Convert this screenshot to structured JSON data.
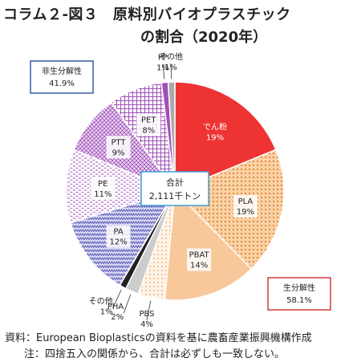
{
  "header": {
    "title_line1": "コラム２-図３　原料別バイオプラスチック",
    "title_line2": "の割合（2020年）"
  },
  "chart_data": {
    "type": "pie",
    "start": "top",
    "slices": [
      {
        "label": "でん粉",
        "pct_text": "19%",
        "value": 19,
        "color": "#ee3333",
        "pattern": "solid"
      },
      {
        "label": "PLA",
        "pct_text": "19%",
        "value": 19,
        "color": "#f4a460",
        "pattern": "dots"
      },
      {
        "label": "PBAT",
        "pct_text": "14%",
        "value": 14,
        "color": "#f8c89a",
        "pattern": "solid"
      },
      {
        "label": "PBS",
        "pct_text": "4%",
        "value": 4,
        "color": "#f8d9b8",
        "pattern": "dots"
      },
      {
        "label": "PHA",
        "pct_text": "2%",
        "value": 2,
        "color": "#cccccc",
        "pattern": "solid"
      },
      {
        "label": "その他",
        "pct_text": "1%",
        "value": 1,
        "color": "#222222",
        "pattern": "solid"
      },
      {
        "label": "PA",
        "pct_text": "12%",
        "value": 12,
        "color": "#7070c8",
        "pattern": "zigzag"
      },
      {
        "label": "PE",
        "pct_text": "11%",
        "value": 11,
        "color": "#b070c8",
        "pattern": "dash"
      },
      {
        "label": "PTT",
        "pct_text": "9%",
        "value": 9,
        "color": "#b070c8",
        "pattern": "cross"
      },
      {
        "label": "PET",
        "pct_text": "8%",
        "value": 8,
        "color": "#a050b8",
        "pattern": "grid"
      },
      {
        "label": "PP",
        "pct_text": "1%",
        "value": 1,
        "color": "#a050b8",
        "pattern": "solid"
      },
      {
        "label": "その他",
        "pct_text": "1%",
        "value": 1,
        "color": "#aaaaaa",
        "pattern": "solid"
      }
    ],
    "center": {
      "label": "合計",
      "value": "2,111千トン"
    },
    "groups": [
      {
        "label": "非生分解性",
        "pct": "41.9%",
        "color": "#3b5ca8"
      },
      {
        "label": "生分解性",
        "pct": "58.1%",
        "color": "#d23c3c"
      }
    ]
  },
  "footer": {
    "source": "資料：European Bioplasticsの資料を基に農畜産業振興機構作成",
    "note": "注：四捨五入の関係から、合計は必ずしも一致しない。"
  }
}
